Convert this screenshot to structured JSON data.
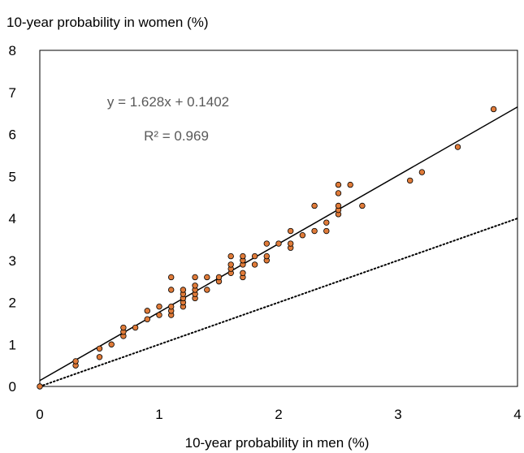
{
  "chart_data": {
    "type": "scatter",
    "ylabel": "10-year probability in women (%)",
    "xlabel": "10-year probability in men (%)",
    "xlim": [
      0,
      4
    ],
    "ylim": [
      0,
      8
    ],
    "xticks": [
      "0",
      "1",
      "2",
      "3",
      "4"
    ],
    "yticks": [
      "0",
      "1",
      "2",
      "3",
      "4",
      "5",
      "6",
      "7",
      "8"
    ],
    "grid": false,
    "legend": "none",
    "annotations": {
      "equation": "y = 1.628x + 0.1402",
      "r2": "R² = 0.969"
    },
    "trendline": {
      "slope": 1.628,
      "intercept": 0.1402,
      "style": "solid",
      "color": "#000000"
    },
    "reference_line": {
      "slope": 1.0,
      "intercept": 0.0,
      "style": "dotted",
      "color": "#000000"
    },
    "marker_color": "#E07B39",
    "marker_edge": "#000000",
    "points": [
      [
        0,
        0
      ],
      [
        0.3,
        0.5
      ],
      [
        0.3,
        0.6
      ],
      [
        0.5,
        0.7
      ],
      [
        0.5,
        0.9
      ],
      [
        0.6,
        1.0
      ],
      [
        0.7,
        1.2
      ],
      [
        0.7,
        1.3
      ],
      [
        0.7,
        1.4
      ],
      [
        0.8,
        1.4
      ],
      [
        0.9,
        1.6
      ],
      [
        0.9,
        1.8
      ],
      [
        1.0,
        1.7
      ],
      [
        1.0,
        1.9
      ],
      [
        1.1,
        1.7
      ],
      [
        1.1,
        1.8
      ],
      [
        1.1,
        1.9
      ],
      [
        1.1,
        2.3
      ],
      [
        1.1,
        2.6
      ],
      [
        1.2,
        1.9
      ],
      [
        1.2,
        2.0
      ],
      [
        1.2,
        2.1
      ],
      [
        1.2,
        2.2
      ],
      [
        1.2,
        2.3
      ],
      [
        1.3,
        2.1
      ],
      [
        1.3,
        2.2
      ],
      [
        1.3,
        2.3
      ],
      [
        1.3,
        2.4
      ],
      [
        1.3,
        2.6
      ],
      [
        1.4,
        2.3
      ],
      [
        1.4,
        2.6
      ],
      [
        1.5,
        2.5
      ],
      [
        1.5,
        2.6
      ],
      [
        1.6,
        2.7
      ],
      [
        1.6,
        2.8
      ],
      [
        1.6,
        2.9
      ],
      [
        1.6,
        3.1
      ],
      [
        1.7,
        2.6
      ],
      [
        1.7,
        2.7
      ],
      [
        1.7,
        2.9
      ],
      [
        1.7,
        3.0
      ],
      [
        1.7,
        3.1
      ],
      [
        1.8,
        2.9
      ],
      [
        1.8,
        3.1
      ],
      [
        1.9,
        3.0
      ],
      [
        1.9,
        3.1
      ],
      [
        1.9,
        3.4
      ],
      [
        2.0,
        3.4
      ],
      [
        2.1,
        3.3
      ],
      [
        2.1,
        3.4
      ],
      [
        2.1,
        3.7
      ],
      [
        2.2,
        3.6
      ],
      [
        2.3,
        3.7
      ],
      [
        2.3,
        4.3
      ],
      [
        2.4,
        3.7
      ],
      [
        2.4,
        3.9
      ],
      [
        2.5,
        4.1
      ],
      [
        2.5,
        4.2
      ],
      [
        2.5,
        4.3
      ],
      [
        2.5,
        4.6
      ],
      [
        2.5,
        4.8
      ],
      [
        2.6,
        4.8
      ],
      [
        2.7,
        4.3
      ],
      [
        3.1,
        4.9
      ],
      [
        3.2,
        5.1
      ],
      [
        3.5,
        5.7
      ],
      [
        3.8,
        6.6
      ]
    ]
  }
}
